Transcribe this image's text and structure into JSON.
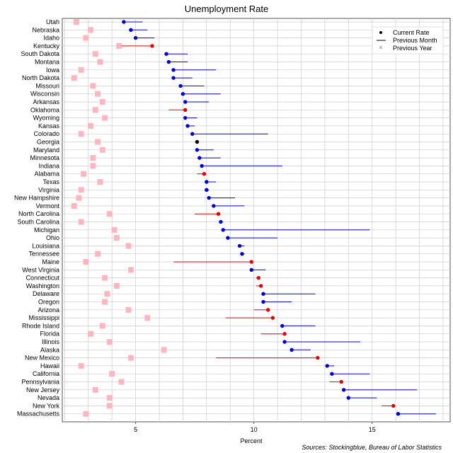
{
  "chart_data": {
    "type": "scatter",
    "title": "Unemployment Rate",
    "xlabel": "Percent",
    "ylabel": "",
    "xlim": [
      1.9,
      18.3
    ],
    "x_ticks": [
      5,
      10,
      15
    ],
    "grid": true,
    "legend_position": "top-right",
    "legend": {
      "current": "Current Rate",
      "previous_month": "Previous Month",
      "previous_year": "Previous Year"
    },
    "colors": {
      "increase": "#e00000",
      "decrease": "#0000cc",
      "unchanged": "#000000",
      "previous_year": "#ffb6c1",
      "grid": "#cccccc"
    },
    "source": "Sources: Stockingblue, Bureau of Labor Statistics",
    "states": [
      {
        "name": "Utah",
        "current": 4.5,
        "prev_month": 5.3,
        "prev_year": 2.5
      },
      {
        "name": "Nebraska",
        "current": 4.8,
        "prev_month": 5.5,
        "prev_year": 3.1
      },
      {
        "name": "Idaho",
        "current": 5.0,
        "prev_month": 5.8,
        "prev_year": 2.9
      },
      {
        "name": "Kentucky",
        "current": 5.7,
        "prev_month": 4.4,
        "prev_year": 4.3
      },
      {
        "name": "South Dakota",
        "current": 6.3,
        "prev_month": 7.2,
        "prev_year": 3.3
      },
      {
        "name": "Montana",
        "current": 6.4,
        "prev_month": 7.2,
        "prev_year": 3.5
      },
      {
        "name": "Iowa",
        "current": 6.6,
        "prev_month": 8.4,
        "prev_year": 2.7
      },
      {
        "name": "North Dakota",
        "current": 6.6,
        "prev_month": 7.4,
        "prev_year": 2.4
      },
      {
        "name": "Missouri",
        "current": 6.9,
        "prev_month": 7.9,
        "prev_year": 3.2
      },
      {
        "name": "Wisconsin",
        "current": 7.0,
        "prev_month": 8.6,
        "prev_year": 3.4
      },
      {
        "name": "Arkansas",
        "current": 7.1,
        "prev_month": 8.1,
        "prev_year": 3.6
      },
      {
        "name": "Oklahoma",
        "current": 7.1,
        "prev_month": 6.4,
        "prev_year": 3.3
      },
      {
        "name": "Wyoming",
        "current": 7.1,
        "prev_month": 7.6,
        "prev_year": 3.7
      },
      {
        "name": "Kansas",
        "current": 7.2,
        "prev_month": 7.5,
        "prev_year": 3.1
      },
      {
        "name": "Colorado",
        "current": 7.4,
        "prev_month": 10.6,
        "prev_year": 2.7
      },
      {
        "name": "Georgia",
        "current": 7.6,
        "prev_month": 7.6,
        "prev_year": 3.4
      },
      {
        "name": "Maryland",
        "current": 7.6,
        "prev_month": 8.3,
        "prev_year": 3.6
      },
      {
        "name": "Minnesota",
        "current": 7.7,
        "prev_month": 8.6,
        "prev_year": 3.2
      },
      {
        "name": "Indiana",
        "current": 7.8,
        "prev_month": 11.2,
        "prev_year": 3.2
      },
      {
        "name": "Alabama",
        "current": 7.9,
        "prev_month": 7.6,
        "prev_year": 2.8
      },
      {
        "name": "Texas",
        "current": 8.0,
        "prev_month": 8.4,
        "prev_year": 3.5
      },
      {
        "name": "Virginia",
        "current": 8.0,
        "prev_month": 8.1,
        "prev_year": 2.7
      },
      {
        "name": "New Hampshire",
        "current": 8.1,
        "prev_month": 9.2,
        "prev_year": 2.6
      },
      {
        "name": "Vermont",
        "current": 8.3,
        "prev_month": 9.6,
        "prev_year": 2.4
      },
      {
        "name": "North Carolina",
        "current": 8.5,
        "prev_month": 7.5,
        "prev_year": 3.9
      },
      {
        "name": "South Carolina",
        "current": 8.6,
        "prev_month": 8.7,
        "prev_year": 2.7
      },
      {
        "name": "Michigan",
        "current": 8.7,
        "prev_month": 14.9,
        "prev_year": 4.1
      },
      {
        "name": "Ohio",
        "current": 8.9,
        "prev_month": 11.0,
        "prev_year": 4.2
      },
      {
        "name": "Louisiana",
        "current": 9.4,
        "prev_month": 9.6,
        "prev_year": 4.7
      },
      {
        "name": "Tennessee",
        "current": 9.5,
        "prev_month": 9.6,
        "prev_year": 3.4
      },
      {
        "name": "Maine",
        "current": 9.9,
        "prev_month": 6.6,
        "prev_year": 2.9
      },
      {
        "name": "West Virginia",
        "current": 9.9,
        "prev_month": 10.5,
        "prev_year": 4.8
      },
      {
        "name": "Connecticut",
        "current": 10.2,
        "prev_month": 10.1,
        "prev_year": 3.7
      },
      {
        "name": "Washington",
        "current": 10.3,
        "prev_month": 10.1,
        "prev_year": 4.2
      },
      {
        "name": "Delaware",
        "current": 10.4,
        "prev_month": 12.6,
        "prev_year": 3.8
      },
      {
        "name": "Oregon",
        "current": 10.4,
        "prev_month": 11.6,
        "prev_year": 3.7
      },
      {
        "name": "Arizona",
        "current": 10.6,
        "prev_month": 10.0,
        "prev_year": 4.7
      },
      {
        "name": "Mississippi",
        "current": 10.8,
        "prev_month": 8.8,
        "prev_year": 5.5
      },
      {
        "name": "Rhode Island",
        "current": 11.2,
        "prev_month": 12.6,
        "prev_year": 3.6
      },
      {
        "name": "Florida",
        "current": 11.3,
        "prev_month": 10.3,
        "prev_year": 3.1
      },
      {
        "name": "Illinois",
        "current": 11.3,
        "prev_month": 14.5,
        "prev_year": 3.9
      },
      {
        "name": "Alaska",
        "current": 11.6,
        "prev_month": 12.4,
        "prev_year": 6.2
      },
      {
        "name": "New Mexico",
        "current": 12.7,
        "prev_month": 8.4,
        "prev_year": 4.8
      },
      {
        "name": "Hawaii",
        "current": 13.1,
        "prev_month": 13.4,
        "prev_year": 2.7
      },
      {
        "name": "California",
        "current": 13.3,
        "prev_month": 14.9,
        "prev_year": 4.0
      },
      {
        "name": "Pennsylvania",
        "current": 13.7,
        "prev_month": 13.2,
        "prev_year": 4.4
      },
      {
        "name": "New Jersey",
        "current": 13.8,
        "prev_month": 16.9,
        "prev_year": 3.3
      },
      {
        "name": "Nevada",
        "current": 14.0,
        "prev_month": 15.2,
        "prev_year": 3.9
      },
      {
        "name": "New York",
        "current": 15.9,
        "prev_month": 15.4,
        "prev_year": 3.9
      },
      {
        "name": "Massachusetts",
        "current": 16.1,
        "prev_month": 17.7,
        "prev_year": 2.9
      }
    ]
  }
}
